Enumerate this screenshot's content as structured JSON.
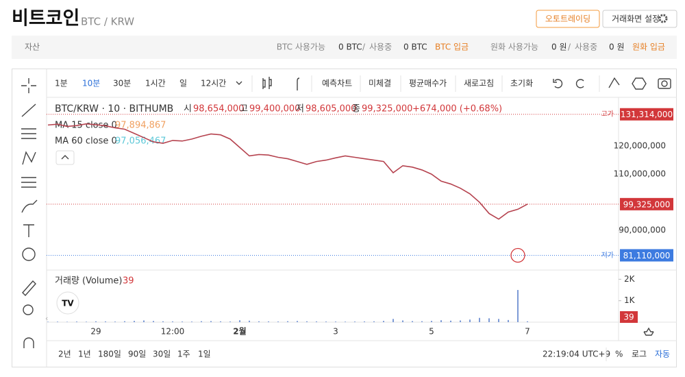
{
  "header": {
    "title": "비트코인",
    "pair": "BTC / KRW",
    "autotrade": "오토트레이딩",
    "settings": "거래화면 설정"
  },
  "assets": {
    "label": "자산",
    "slash": "/",
    "groups": [
      {
        "available": "BTC 사용가능",
        "amount": "0 BTC",
        "in_use": "사용중",
        "in_use_amount": "0 BTC",
        "deposit": "BTC 입금"
      },
      {
        "available": "원화 사용가능",
        "amount": "0 원",
        "in_use": "사용중",
        "in_use_amount": "0 원",
        "deposit": "원화 입금"
      }
    ]
  },
  "toolbar": {
    "intervals": [
      "1분",
      "10분",
      "30분",
      "1시간",
      "일",
      "12시간"
    ],
    "active_interval": 1,
    "tools": [
      "예측차트",
      "미체결",
      "평균매수가",
      "새로고침",
      "초기화"
    ]
  },
  "footer": {
    "ranges": [
      "2년",
      "1년",
      "180일",
      "90일",
      "30일",
      "1주",
      "1일"
    ],
    "clock": "22:19:04 UTC+9",
    "percent": "%",
    "log": "로그",
    "auto": "자동"
  },
  "chart_data": {
    "type": "line",
    "title": "BTC/KRW · 10 · BITHUMB",
    "ohlc": [
      {
        "label": "시",
        "value": "98,654,000"
      },
      {
        "label": "고",
        "value": "99,400,000"
      },
      {
        "label": "저",
        "value": "98,605,000"
      },
      {
        "label": "종",
        "value": "99,325,000"
      }
    ],
    "change": "+674,000 (+0.68%)",
    "indicators": [
      {
        "name": "MA 15 close 0",
        "value_label": "97,894,867",
        "color": "#f0a060"
      },
      {
        "name": "MA 60 close 0",
        "value_label": "97,056,467",
        "color": "#5cc8d8"
      }
    ],
    "categories": [
      null,
      null,
      null,
      null,
      null,
      "29",
      null,
      null,
      null,
      null,
      null,
      null,
      null,
      "12:00",
      null,
      null,
      null,
      null,
      null,
      null,
      "2월",
      null,
      null,
      null,
      null,
      null,
      null,
      null,
      null,
      null,
      "3",
      null,
      null,
      null,
      null,
      null,
      null,
      null,
      null,
      null,
      "5",
      null,
      null,
      null,
      null,
      null,
      null,
      null,
      null,
      null,
      "7",
      null
    ],
    "values": [
      127500000,
      127800000,
      127000000,
      127300000,
      127900000,
      127600000,
      127200000,
      126500000,
      126000000,
      124500000,
      123000000,
      121500000,
      121000000,
      122000000,
      121800000,
      122500000,
      123500000,
      124300000,
      124000000,
      122500000,
      119500000,
      116500000,
      117000000,
      116800000,
      116000000,
      115500000,
      114500000,
      113500000,
      114500000,
      115000000,
      115800000,
      116500000,
      116000000,
      115500000,
      115000000,
      114500000,
      110500000,
      113000000,
      112500000,
      111500000,
      110000000,
      107500000,
      106500000,
      105000000,
      103000000,
      100000000,
      96000000,
      94000000,
      96500000,
      97500000,
      99325000,
      null
    ],
    "color": "#b5424e",
    "ylim": [
      76100000,
      135400000
    ],
    "yticks": [
      {
        "value": 90000000,
        "label": "90,000,000"
      },
      {
        "value": 110000000,
        "label": "110,000,000"
      },
      {
        "value": 120000000,
        "label": "120,000,000"
      }
    ],
    "grid": false,
    "high": {
      "label": "고가",
      "value": 131314000,
      "value_label": "131,314,000"
    },
    "current": {
      "value": 99325000,
      "value_label": "99,325,000"
    },
    "low": {
      "label": "저가",
      "value": 81110000,
      "value_label": "81,110,000"
    },
    "volume": {
      "title": "거래량 (Volume)",
      "color": "#7c9ad6",
      "values": [
        20,
        25,
        18,
        30,
        22,
        40,
        35,
        28,
        45,
        60,
        80,
        55,
        40,
        35,
        30,
        28,
        45,
        50,
        38,
        30,
        90,
        70,
        40,
        35,
        30,
        45,
        55,
        40,
        35,
        30,
        28,
        25,
        30,
        35,
        40,
        60,
        150,
        80,
        50,
        45,
        60,
        90,
        70,
        80,
        120,
        200,
        180,
        150,
        100,
        1500,
        39,
        null
      ],
      "ylim": [
        0,
        2300
      ],
      "yticks": [
        {
          "value": 1000,
          "label": "1K"
        },
        {
          "value": 2000,
          "label": "2K"
        }
      ]
    }
  }
}
